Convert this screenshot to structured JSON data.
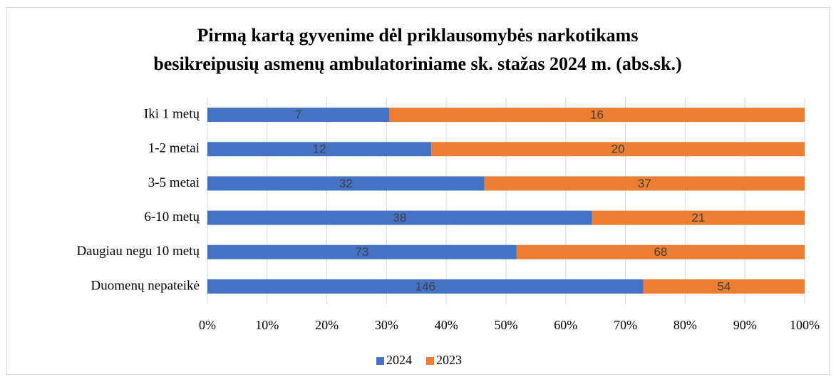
{
  "chart_data": {
    "type": "bar",
    "orientation": "horizontal",
    "stacking": "percent",
    "title": "Pirmą kartą gyvenime dėl priklausomybės narkotikams",
    "subtitle": "besikreipusių asmenų ambulatoriniame sk. stažas 2024 m. (abs.sk.)",
    "categories": [
      "Iki 1 metų",
      "1-2 metai",
      "3-5 metai",
      "6-10 metų",
      "Daugiau negu 10 metų",
      "Duomenų nepateikė"
    ],
    "series": [
      {
        "name": "2024",
        "color": "#4472c4",
        "values": [
          7,
          12,
          32,
          38,
          73,
          146
        ]
      },
      {
        "name": "2023",
        "color": "#ed7d31",
        "values": [
          16,
          20,
          37,
          21,
          68,
          54
        ]
      }
    ],
    "xlim": [
      0,
      100
    ],
    "xticks": [
      {
        "value": 0,
        "label": "0%"
      },
      {
        "value": 10,
        "label": "10%"
      },
      {
        "value": 20,
        "label": "20%"
      },
      {
        "value": 30,
        "label": "30%"
      },
      {
        "value": 40,
        "label": "40%"
      },
      {
        "value": 50,
        "label": "50%"
      },
      {
        "value": 60,
        "label": "60%"
      },
      {
        "value": 70,
        "label": "70%"
      },
      {
        "value": 80,
        "label": "80%"
      },
      {
        "value": 90,
        "label": "90%"
      },
      {
        "value": 100,
        "label": "100%"
      }
    ],
    "grid": true,
    "legend": "bottom"
  }
}
